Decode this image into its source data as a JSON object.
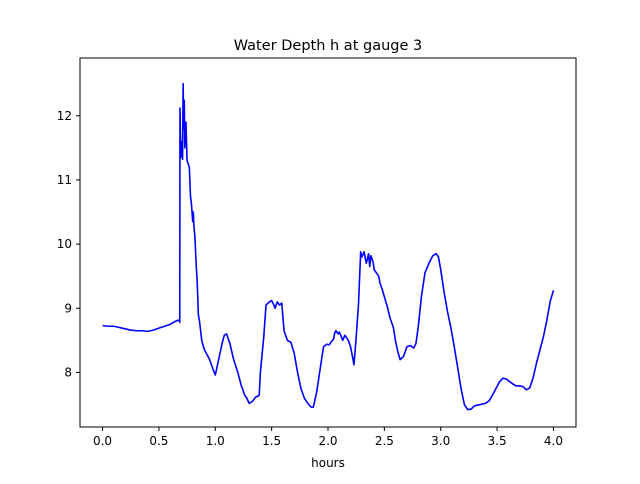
{
  "chart_data": {
    "type": "line",
    "title": "Water Depth h at gauge 3",
    "xlabel": "hours",
    "ylabel": "",
    "xlim": [
      -0.2,
      4.2
    ],
    "ylim": [
      7.15,
      12.9
    ],
    "x_ticks": [
      0.0,
      0.5,
      1.0,
      1.5,
      2.0,
      2.5,
      3.0,
      3.5,
      4.0
    ],
    "x_tick_labels": [
      "0.0",
      "0.5",
      "1.0",
      "1.5",
      "2.0",
      "2.5",
      "3.0",
      "3.5",
      "4.0"
    ],
    "y_ticks": [
      8,
      9,
      10,
      11,
      12
    ],
    "y_tick_labels": [
      "8",
      "9",
      "10",
      "11",
      "12"
    ],
    "grid": false,
    "legend": "none",
    "series": [
      {
        "color": "#0000ff",
        "points": [
          [
            0.0,
            8.73
          ],
          [
            0.05,
            8.72
          ],
          [
            0.1,
            8.72
          ],
          [
            0.15,
            8.7
          ],
          [
            0.2,
            8.68
          ],
          [
            0.25,
            8.66
          ],
          [
            0.3,
            8.65
          ],
          [
            0.35,
            8.65
          ],
          [
            0.4,
            8.64
          ],
          [
            0.45,
            8.66
          ],
          [
            0.5,
            8.69
          ],
          [
            0.55,
            8.72
          ],
          [
            0.6,
            8.75
          ],
          [
            0.65,
            8.8
          ],
          [
            0.68,
            8.82
          ],
          [
            0.685,
            8.78
          ],
          [
            0.687,
            12.12
          ],
          [
            0.695,
            11.35
          ],
          [
            0.705,
            11.6
          ],
          [
            0.71,
            11.32
          ],
          [
            0.715,
            12.5
          ],
          [
            0.72,
            11.8
          ],
          [
            0.725,
            12.24
          ],
          [
            0.73,
            11.5
          ],
          [
            0.74,
            11.9
          ],
          [
            0.75,
            11.3
          ],
          [
            0.77,
            11.2
          ],
          [
            0.78,
            10.75
          ],
          [
            0.79,
            10.6
          ],
          [
            0.8,
            10.35
          ],
          [
            0.805,
            10.5
          ],
          [
            0.81,
            10.3
          ],
          [
            0.82,
            10.1
          ],
          [
            0.83,
            9.7
          ],
          [
            0.84,
            9.4
          ],
          [
            0.85,
            8.9
          ],
          [
            0.86,
            8.8
          ],
          [
            0.88,
            8.5
          ],
          [
            0.9,
            8.37
          ],
          [
            0.92,
            8.3
          ],
          [
            0.95,
            8.2
          ],
          [
            0.98,
            8.05
          ],
          [
            1.0,
            7.96
          ],
          [
            1.03,
            8.2
          ],
          [
            1.06,
            8.45
          ],
          [
            1.08,
            8.58
          ],
          [
            1.1,
            8.6
          ],
          [
            1.13,
            8.45
          ],
          [
            1.16,
            8.22
          ],
          [
            1.2,
            8.0
          ],
          [
            1.23,
            7.8
          ],
          [
            1.26,
            7.65
          ],
          [
            1.28,
            7.6
          ],
          [
            1.3,
            7.52
          ],
          [
            1.33,
            7.55
          ],
          [
            1.36,
            7.62
          ],
          [
            1.38,
            7.63
          ],
          [
            1.39,
            7.65
          ],
          [
            1.4,
            8.0
          ],
          [
            1.43,
            8.55
          ],
          [
            1.45,
            9.05
          ],
          [
            1.48,
            9.1
          ],
          [
            1.5,
            9.12
          ],
          [
            1.52,
            9.05
          ],
          [
            1.53,
            9.0
          ],
          [
            1.55,
            9.1
          ],
          [
            1.57,
            9.05
          ],
          [
            1.59,
            9.08
          ],
          [
            1.61,
            8.65
          ],
          [
            1.64,
            8.5
          ],
          [
            1.67,
            8.47
          ],
          [
            1.7,
            8.3
          ],
          [
            1.73,
            8.0
          ],
          [
            1.76,
            7.75
          ],
          [
            1.79,
            7.6
          ],
          [
            1.82,
            7.52
          ],
          [
            1.85,
            7.46
          ],
          [
            1.87,
            7.46
          ],
          [
            1.9,
            7.7
          ],
          [
            1.93,
            8.05
          ],
          [
            1.96,
            8.4
          ],
          [
            1.99,
            8.44
          ],
          [
            2.01,
            8.43
          ],
          [
            2.03,
            8.48
          ],
          [
            2.05,
            8.52
          ],
          [
            2.06,
            8.62
          ],
          [
            2.07,
            8.65
          ],
          [
            2.09,
            8.6
          ],
          [
            2.1,
            8.63
          ],
          [
            2.12,
            8.55
          ],
          [
            2.13,
            8.5
          ],
          [
            2.15,
            8.58
          ],
          [
            2.18,
            8.5
          ],
          [
            2.2,
            8.4
          ],
          [
            2.22,
            8.22
          ],
          [
            2.23,
            8.12
          ],
          [
            2.25,
            8.55
          ],
          [
            2.27,
            9.05
          ],
          [
            2.29,
            9.88
          ],
          [
            2.3,
            9.8
          ],
          [
            2.32,
            9.88
          ],
          [
            2.34,
            9.7
          ],
          [
            2.36,
            9.85
          ],
          [
            2.37,
            9.65
          ],
          [
            2.38,
            9.82
          ],
          [
            2.4,
            9.72
          ],
          [
            2.41,
            9.6
          ],
          [
            2.43,
            9.55
          ],
          [
            2.45,
            9.5
          ],
          [
            2.46,
            9.4
          ],
          [
            2.48,
            9.3
          ],
          [
            2.5,
            9.18
          ],
          [
            2.53,
            9.0
          ],
          [
            2.55,
            8.85
          ],
          [
            2.58,
            8.7
          ],
          [
            2.6,
            8.48
          ],
          [
            2.62,
            8.32
          ],
          [
            2.64,
            8.2
          ],
          [
            2.67,
            8.25
          ],
          [
            2.7,
            8.4
          ],
          [
            2.73,
            8.42
          ],
          [
            2.76,
            8.38
          ],
          [
            2.78,
            8.45
          ],
          [
            2.8,
            8.7
          ],
          [
            2.83,
            9.2
          ],
          [
            2.86,
            9.55
          ],
          [
            2.9,
            9.72
          ],
          [
            2.93,
            9.82
          ],
          [
            2.96,
            9.85
          ],
          [
            2.98,
            9.8
          ],
          [
            3.0,
            9.6
          ],
          [
            3.03,
            9.25
          ],
          [
            3.06,
            8.95
          ],
          [
            3.09,
            8.7
          ],
          [
            3.12,
            8.4
          ],
          [
            3.15,
            8.08
          ],
          [
            3.18,
            7.75
          ],
          [
            3.21,
            7.5
          ],
          [
            3.24,
            7.42
          ],
          [
            3.27,
            7.43
          ],
          [
            3.3,
            7.48
          ],
          [
            3.35,
            7.5
          ],
          [
            3.4,
            7.52
          ],
          [
            3.43,
            7.56
          ],
          [
            3.46,
            7.65
          ],
          [
            3.49,
            7.75
          ],
          [
            3.52,
            7.85
          ],
          [
            3.55,
            7.91
          ],
          [
            3.58,
            7.9
          ],
          [
            3.61,
            7.86
          ],
          [
            3.64,
            7.82
          ],
          [
            3.67,
            7.79
          ],
          [
            3.7,
            7.79
          ],
          [
            3.73,
            7.78
          ],
          [
            3.76,
            7.73
          ],
          [
            3.79,
            7.76
          ],
          [
            3.82,
            7.92
          ],
          [
            3.85,
            8.15
          ],
          [
            3.88,
            8.35
          ],
          [
            3.91,
            8.55
          ],
          [
            3.94,
            8.8
          ],
          [
            3.97,
            9.1
          ],
          [
            4.0,
            9.28
          ]
        ]
      }
    ]
  }
}
